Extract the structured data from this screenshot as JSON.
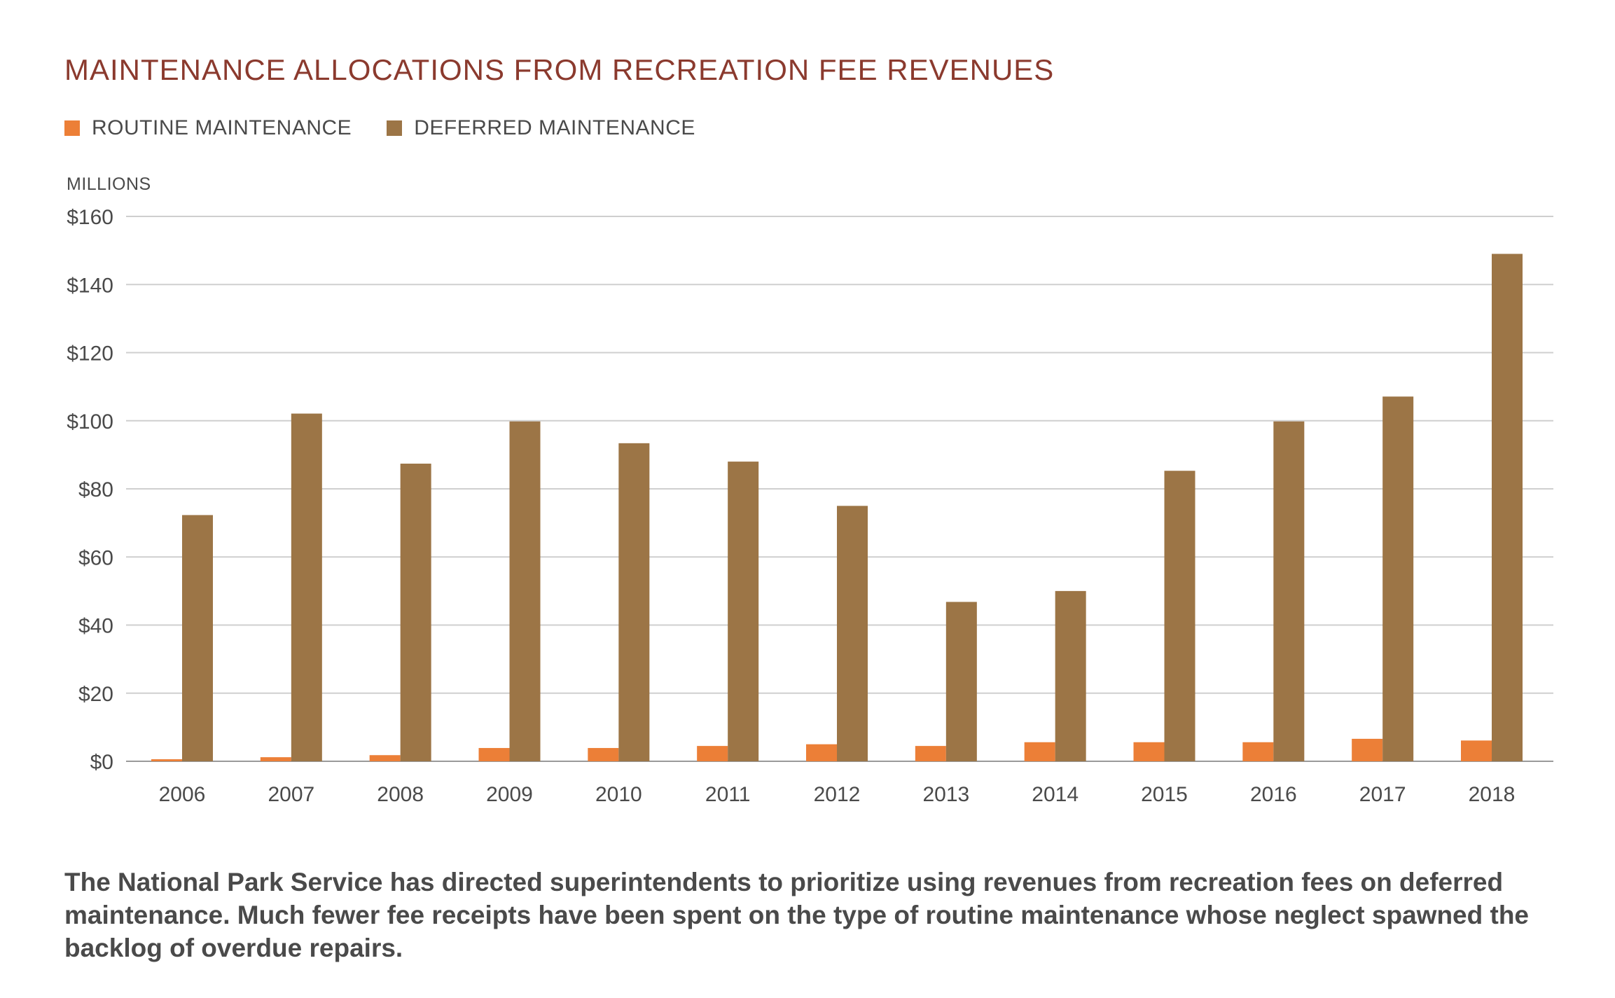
{
  "chart_data": {
    "type": "bar",
    "title": "MAINTENANCE ALLOCATIONS FROM RECREATION FEE REVENUES",
    "ylabel": "MILLIONS",
    "xlabel": "",
    "ylim": [
      0,
      160
    ],
    "yticks": [
      0,
      20,
      40,
      60,
      80,
      100,
      120,
      140,
      160
    ],
    "ytick_labels": [
      "$0",
      "$20",
      "$40",
      "$60",
      "$80",
      "$100",
      "$120",
      "$140",
      "$160"
    ],
    "grid": true,
    "legend_position": "top-left",
    "categories": [
      "2006",
      "2007",
      "2008",
      "2009",
      "2010",
      "2011",
      "2012",
      "2013",
      "2014",
      "2015",
      "2016",
      "2017",
      "2018"
    ],
    "series": [
      {
        "name": "ROUTINE MAINTENANCE",
        "color": "#EC7F37",
        "values": [
          0.6,
          1.2,
          1.8,
          3.9,
          3.9,
          4.5,
          5.0,
          4.5,
          5.6,
          5.6,
          5.6,
          6.6,
          6.1
        ]
      },
      {
        "name": "DEFERRED MAINTENANCE",
        "color": "#9C7546",
        "values": [
          72.3,
          102.1,
          87.4,
          99.8,
          93.4,
          88.0,
          75.0,
          46.8,
          50.0,
          85.3,
          99.8,
          107.1,
          149.0
        ]
      }
    ]
  },
  "caption": "The National Park Service has directed superintendents to prioritize using revenues from recreation fees on deferred maintenance. Much fewer fee receipts have been spent on the type of routine maintenance whose neglect spawned the backlog of overdue repairs."
}
